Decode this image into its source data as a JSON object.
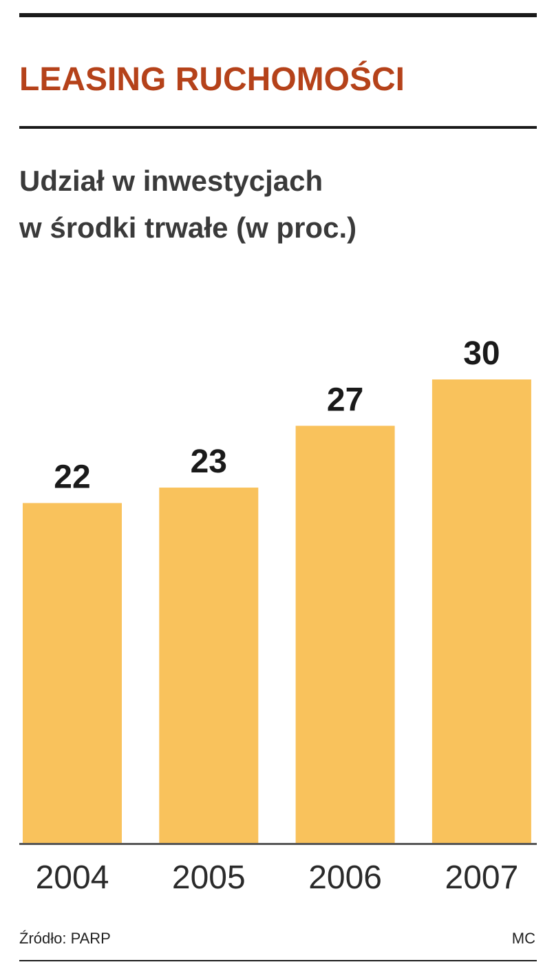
{
  "chart_data": {
    "type": "bar",
    "title": "LEASING RUCHOMOŚCI",
    "subtitle": [
      "Udział w inwestycjach",
      "w środki trwałe (w proc.)"
    ],
    "categories": [
      "2004",
      "2005",
      "2006",
      "2007"
    ],
    "values": [
      22,
      23,
      27,
      30
    ],
    "color": "#f9c25c",
    "source": "Źródło: PARP",
    "credit": "MC"
  }
}
